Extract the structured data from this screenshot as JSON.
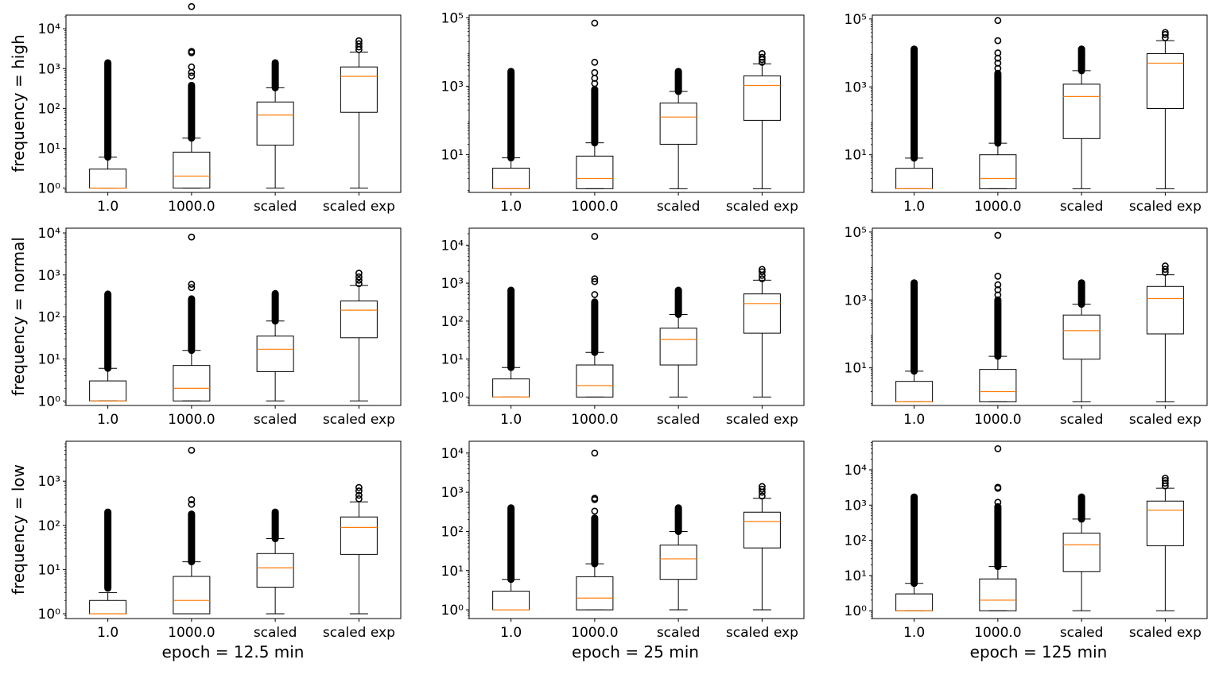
{
  "chart_data": {
    "type": "box",
    "scale": "log",
    "categories": [
      "1.0",
      "1000.0",
      "scaled",
      "scaled exp"
    ],
    "row_labels": [
      "frequency = high",
      "frequency = normal",
      "frequency = low"
    ],
    "column_labels": [
      "epoch = 12.5 min",
      "epoch = 25 min",
      "epoch = 125 min"
    ],
    "colors": {
      "box": "#000000",
      "median": "#ff7f0e",
      "background": "#ffffff"
    },
    "panels": [
      {
        "row": 0,
        "col": 0,
        "ylim": [
          0.78,
          22000
        ],
        "yticks": [
          {
            "v": 1,
            "label": "10⁰"
          },
          {
            "v": 10,
            "label": "10¹"
          },
          {
            "v": 100,
            "label": "10²"
          },
          {
            "v": 1000,
            "label": "10³"
          },
          {
            "v": 10000,
            "label": "10⁴"
          }
        ],
        "boxes": [
          {
            "q1": 1,
            "median": 1,
            "q3": 3,
            "wlo": 1,
            "whi": 6,
            "fliers": [
              {
                "from": 6,
                "to": 1400
              }
            ]
          },
          {
            "q1": 1,
            "median": 2,
            "q3": 8,
            "wlo": 1,
            "whi": 18,
            "fliers": [
              {
                "from": 18,
                "to": 380
              },
              650,
              800,
              1100,
              2500,
              2700,
              36000
            ]
          },
          {
            "q1": 12,
            "median": 68,
            "q3": 145,
            "wlo": 1,
            "whi": 330,
            "fliers": [
              {
                "from": 330,
                "to": 1400
              }
            ]
          },
          {
            "q1": 80,
            "median": 640,
            "q3": 1100,
            "wlo": 1,
            "whi": 2600,
            "fliers": [
              3000,
              3500,
              4200,
              5000
            ]
          }
        ]
      },
      {
        "row": 0,
        "col": 1,
        "ylim": [
          0.78,
          120000
        ],
        "yticks": [
          {
            "v": 10,
            "label": "10¹"
          },
          {
            "v": 1000,
            "label": "10³"
          },
          {
            "v": 100000,
            "label": "10⁵"
          }
        ],
        "boxes": [
          {
            "q1": 1,
            "median": 1,
            "q3": 4,
            "wlo": 1,
            "whi": 8,
            "fliers": [
              {
                "from": 8,
                "to": 2700
              }
            ]
          },
          {
            "q1": 1,
            "median": 2,
            "q3": 9,
            "wlo": 1,
            "whi": 22,
            "fliers": [
              {
                "from": 22,
                "to": 800
              },
              1200,
              1700,
              2500,
              5000,
              70000
            ]
          },
          {
            "q1": 20,
            "median": 125,
            "q3": 320,
            "wlo": 1,
            "whi": 700,
            "fliers": [
              {
                "from": 700,
                "to": 2700
              }
            ]
          },
          {
            "q1": 100,
            "median": 1050,
            "q3": 2000,
            "wlo": 1,
            "whi": 4500,
            "fliers": [
              5000,
              6000,
              7000,
              9000
            ]
          }
        ]
      },
      {
        "row": 0,
        "col": 2,
        "ylim": [
          0.78,
          130000
        ],
        "yticks": [
          {
            "v": 10,
            "label": "10¹"
          },
          {
            "v": 1000,
            "label": "10³"
          },
          {
            "v": 100000,
            "label": "10⁵"
          }
        ],
        "boxes": [
          {
            "q1": 1,
            "median": 1,
            "q3": 4,
            "wlo": 1,
            "whi": 8,
            "fliers": [
              {
                "from": 8,
                "to": 13000
              }
            ]
          },
          {
            "q1": 1,
            "median": 2,
            "q3": 10,
            "wlo": 1,
            "whi": 22,
            "fliers": [
              {
                "from": 22,
                "to": 2500
              },
              3500,
              5000,
              7000,
              10000,
              23000,
              90000
            ]
          },
          {
            "q1": 30,
            "median": 520,
            "q3": 1200,
            "wlo": 1,
            "whi": 3000,
            "fliers": [
              {
                "from": 3000,
                "to": 13000
              }
            ]
          },
          {
            "q1": 230,
            "median": 5000,
            "q3": 9500,
            "wlo": 1,
            "whi": 23000,
            "fliers": [
              28000,
              35000,
              40000
            ]
          }
        ]
      },
      {
        "row": 1,
        "col": 0,
        "ylim": [
          0.78,
          13000
        ],
        "yticks": [
          {
            "v": 1,
            "label": "10⁰"
          },
          {
            "v": 10,
            "label": "10¹"
          },
          {
            "v": 100,
            "label": "10²"
          },
          {
            "v": 1000,
            "label": "10³"
          },
          {
            "v": 10000,
            "label": "10⁴"
          }
        ],
        "boxes": [
          {
            "q1": 1,
            "median": 1,
            "q3": 3,
            "wlo": 1,
            "whi": 6,
            "fliers": [
              {
                "from": 6,
                "to": 350
              }
            ]
          },
          {
            "q1": 1,
            "median": 2,
            "q3": 7,
            "wlo": 1,
            "whi": 16,
            "fliers": [
              {
                "from": 16,
                "to": 270
              },
              500,
              600,
              8000
            ]
          },
          {
            "q1": 5,
            "median": 17,
            "q3": 35,
            "wlo": 1,
            "whi": 80,
            "fliers": [
              {
                "from": 80,
                "to": 360
              }
            ]
          },
          {
            "q1": 32,
            "median": 145,
            "q3": 240,
            "wlo": 1,
            "whi": 560,
            "fliers": [
              620,
              750,
              900,
              1100
            ]
          }
        ]
      },
      {
        "row": 1,
        "col": 1,
        "ylim": [
          0.6,
          28000
        ],
        "yticks": [
          {
            "v": 1,
            "label": "10⁰"
          },
          {
            "v": 10,
            "label": "10¹"
          },
          {
            "v": 100,
            "label": "10²"
          },
          {
            "v": 1000,
            "label": "10³"
          },
          {
            "v": 10000,
            "label": "10⁴"
          }
        ],
        "boxes": [
          {
            "q1": 1,
            "median": 1,
            "q3": 3,
            "wlo": 1,
            "whi": 6,
            "fliers": [
              {
                "from": 6,
                "to": 650
              }
            ]
          },
          {
            "q1": 1,
            "median": 2,
            "q3": 7,
            "wlo": 1,
            "whi": 15,
            "fliers": [
              {
                "from": 15,
                "to": 320
              },
              500,
              1100,
              1300,
              17000
            ]
          },
          {
            "q1": 7,
            "median": 33,
            "q3": 65,
            "wlo": 1,
            "whi": 150,
            "fliers": [
              {
                "from": 150,
                "to": 650
              }
            ]
          },
          {
            "q1": 48,
            "median": 290,
            "q3": 520,
            "wlo": 1,
            "whi": 1200,
            "fliers": [
              1300,
              1600,
              2000,
              2300
            ]
          }
        ]
      },
      {
        "row": 1,
        "col": 2,
        "ylim": [
          0.78,
          130000
        ],
        "yticks": [
          {
            "v": 10,
            "label": "10¹"
          },
          {
            "v": 1000,
            "label": "10³"
          },
          {
            "v": 100000,
            "label": "10⁵"
          }
        ],
        "boxes": [
          {
            "q1": 1,
            "median": 1,
            "q3": 4,
            "wlo": 1,
            "whi": 8,
            "fliers": [
              {
                "from": 8,
                "to": 3200
              }
            ]
          },
          {
            "q1": 1,
            "median": 2,
            "q3": 9,
            "wlo": 1,
            "whi": 22,
            "fliers": [
              {
                "from": 22,
                "to": 1000
              },
              1400,
              2000,
              2800,
              5000,
              80000
            ]
          },
          {
            "q1": 18,
            "median": 125,
            "q3": 360,
            "wlo": 1,
            "whi": 750,
            "fliers": [
              {
                "from": 750,
                "to": 3200
              }
            ]
          },
          {
            "q1": 100,
            "median": 1100,
            "q3": 2500,
            "wlo": 1,
            "whi": 5500,
            "fliers": [
              6500,
              8000,
              10000
            ]
          }
        ]
      },
      {
        "row": 2,
        "col": 0,
        "ylim": [
          0.78,
          8000
        ],
        "yticks": [
          {
            "v": 1,
            "label": "10⁰"
          },
          {
            "v": 10,
            "label": "10¹"
          },
          {
            "v": 100,
            "label": "10²"
          },
          {
            "v": 1000,
            "label": "10³"
          }
        ],
        "boxes": [
          {
            "q1": 1,
            "median": 1,
            "q3": 2,
            "wlo": 1,
            "whi": 3,
            "fliers": [
              {
                "from": 3.8,
                "to": 200
              }
            ]
          },
          {
            "q1": 1,
            "median": 2,
            "q3": 7,
            "wlo": 1,
            "whi": 15,
            "fliers": [
              {
                "from": 15,
                "to": 180
              },
              300,
              380,
              5000
            ]
          },
          {
            "q1": 4,
            "median": 11,
            "q3": 23,
            "wlo": 1,
            "whi": 50,
            "fliers": [
              {
                "from": 50,
                "to": 200
              }
            ]
          },
          {
            "q1": 22,
            "median": 90,
            "q3": 155,
            "wlo": 1,
            "whi": 340,
            "fliers": [
              400,
              480,
              600,
              720
            ]
          }
        ]
      },
      {
        "row": 2,
        "col": 1,
        "ylim": [
          0.6,
          20000
        ],
        "yticks": [
          {
            "v": 1,
            "label": "10⁰"
          },
          {
            "v": 10,
            "label": "10¹"
          },
          {
            "v": 100,
            "label": "10²"
          },
          {
            "v": 1000,
            "label": "10³"
          },
          {
            "v": 10000,
            "label": "10⁴"
          }
        ],
        "boxes": [
          {
            "q1": 1,
            "median": 1,
            "q3": 3,
            "wlo": 1,
            "whi": 6,
            "fliers": [
              {
                "from": 6,
                "to": 400
              }
            ]
          },
          {
            "q1": 1,
            "median": 2,
            "q3": 7,
            "wlo": 1,
            "whi": 15,
            "fliers": [
              {
                "from": 15,
                "to": 220
              },
              330,
              650,
              700,
              10000
            ]
          },
          {
            "q1": 6,
            "median": 20,
            "q3": 45,
            "wlo": 1,
            "whi": 100,
            "fliers": [
              {
                "from": 100,
                "to": 400
              }
            ]
          },
          {
            "q1": 38,
            "median": 180,
            "q3": 310,
            "wlo": 1,
            "whi": 700,
            "fliers": [
              800,
              1000,
              1200,
              1400
            ]
          }
        ]
      },
      {
        "row": 2,
        "col": 2,
        "ylim": [
          0.6,
          65000
        ],
        "yticks": [
          {
            "v": 1,
            "label": "10⁰"
          },
          {
            "v": 10,
            "label": "10¹"
          },
          {
            "v": 100,
            "label": "10²"
          },
          {
            "v": 1000,
            "label": "10³"
          },
          {
            "v": 10000,
            "label": "10⁴"
          }
        ],
        "boxes": [
          {
            "q1": 1,
            "median": 1,
            "q3": 3,
            "wlo": 1,
            "whi": 6,
            "fliers": [
              {
                "from": 6,
                "to": 1700
              }
            ]
          },
          {
            "q1": 1,
            "median": 2,
            "q3": 8,
            "wlo": 1,
            "whi": 18,
            "fliers": [
              {
                "from": 18,
                "to": 900
              },
              1200,
              3000,
              3200,
              40000
            ]
          },
          {
            "q1": 13,
            "median": 75,
            "q3": 160,
            "wlo": 1,
            "whi": 400,
            "fliers": [
              {
                "from": 400,
                "to": 1700
              }
            ]
          },
          {
            "q1": 70,
            "median": 720,
            "q3": 1300,
            "wlo": 1,
            "whi": 3000,
            "fliers": [
              3500,
              4200,
              5000,
              5800
            ]
          }
        ]
      }
    ]
  }
}
